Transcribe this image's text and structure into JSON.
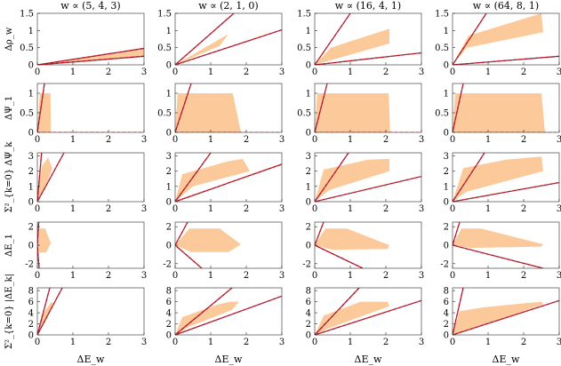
{
  "chart_data": {
    "type": "area",
    "layout": "grid",
    "rows": 5,
    "cols": 4,
    "fill_color": "#fbc99a",
    "line_color": "#9b1030",
    "dash_color": "#e0302a",
    "column_titles": [
      "w ∝ (5, 4, 3)",
      "w ∝ (2, 1, 0)",
      "w ∝ (16, 4, 1)",
      "w ∝ (64, 8, 1)"
    ],
    "row_labels": [
      "Δρ_w",
      "ΔΨ_1",
      "Σ²_{k=0} ΔΨ_k",
      "ΔE_1",
      "Σ²_{k=0} |ΔE_k|"
    ],
    "xlabel": "ΔE_w",
    "xlim": [
      0,
      3
    ],
    "xticks": [
      0,
      1,
      2,
      3
    ],
    "rows_spec": [
      {
        "ylim": [
          0,
          1.5
        ],
        "yticks": [
          "0",
          "0.5",
          "1",
          "1.5"
        ],
        "yticks_values": [
          0,
          0.5,
          1,
          1.5
        ],
        "panels": [
          {
            "region": [
              [
                0,
                0
              ],
              [
                3,
                0.48
              ],
              [
                3,
                0.25
              ]
            ],
            "lines": [
              [
                0,
                0,
                3,
                0.48
              ],
              [
                0,
                0,
                3,
                0.25
              ]
            ]
          },
          {
            "region": [
              [
                0,
                0
              ],
              [
                1.5,
                0.9
              ],
              [
                1.25,
                0.55
              ]
            ],
            "lines": [
              [
                0,
                0,
                1.65,
                1.5
              ],
              [
                0,
                0,
                3,
                1.02
              ]
            ]
          },
          {
            "region": [
              [
                0,
                0
              ],
              [
                0.45,
                0.5
              ],
              [
                2.1,
                1.05
              ],
              [
                2.1,
                0.62
              ]
            ],
            "lines": [
              [
                0,
                0,
                1.0,
                1.5
              ],
              [
                0,
                0,
                3,
                0.35
              ]
            ]
          },
          {
            "region": [
              [
                0,
                0
              ],
              [
                0.45,
                0.85
              ],
              [
                2.5,
                1.5
              ],
              [
                2.55,
                0.95
              ],
              [
                0.4,
                0.5
              ]
            ],
            "lines": [
              [
                0,
                0,
                0.95,
                1.5
              ],
              [
                0,
                0,
                3,
                0.25
              ]
            ]
          }
        ]
      },
      {
        "ylim": [
          0,
          1.25
        ],
        "yticks": [
          "0",
          "0.5",
          "1"
        ],
        "yticks_values": [
          0,
          0.5,
          1
        ],
        "panels": [
          {
            "region": [
              [
                0,
                0
              ],
              [
                0.07,
                1.0
              ],
              [
                0.37,
                1.0
              ],
              [
                0.38,
                0.0
              ]
            ],
            "lines": [
              [
                0,
                0,
                0.2,
                1.25
              ]
            ],
            "dash": [
              0,
              0,
              3,
              0
            ]
          },
          {
            "region": [
              [
                0,
                0
              ],
              [
                0.07,
                1.0
              ],
              [
                1.62,
                1.0
              ],
              [
                1.85,
                0.0
              ]
            ],
            "lines": [
              [
                0,
                0,
                0.45,
                1.25
              ]
            ],
            "dash": [
              0,
              0,
              3,
              0
            ]
          },
          {
            "region": [
              [
                0,
                0
              ],
              [
                0.07,
                1.0
              ],
              [
                2.08,
                1.0
              ],
              [
                2.12,
                0.0
              ]
            ],
            "lines": [
              [
                0,
                0,
                0.35,
                1.25
              ]
            ],
            "dash": [
              0,
              0,
              3,
              0
            ]
          },
          {
            "region": [
              [
                0,
                0
              ],
              [
                0.07,
                1.0
              ],
              [
                2.5,
                1.0
              ],
              [
                2.6,
                0.0
              ]
            ],
            "lines": [
              [
                0,
                0,
                0.3,
                1.25
              ]
            ],
            "dash": [
              0,
              0,
              3,
              0
            ]
          }
        ]
      },
      {
        "ylim": [
          0,
          3.2
        ],
        "yticks": [
          "0",
          "1",
          "2",
          "3"
        ],
        "yticks_values": [
          0,
          1,
          2,
          3
        ],
        "panels": [
          {
            "region": [
              [
                0,
                0
              ],
              [
                0.12,
                2.3
              ],
              [
                0.3,
                2.9
              ],
              [
                0.42,
                2.2
              ],
              [
                0.3,
                1.4
              ],
              [
                0.08,
                0.4
              ]
            ],
            "lines": [
              [
                0,
                0,
                0.12,
                3.2
              ],
              [
                0,
                0,
                0.75,
                3.2
              ]
            ]
          },
          {
            "region": [
              [
                0,
                0
              ],
              [
                0.2,
                1.8
              ],
              [
                1.5,
                2.65
              ],
              [
                1.9,
                2.8
              ],
              [
                2.1,
                2.0
              ],
              [
                0.5,
                1.0
              ]
            ],
            "lines": [
              [
                0,
                0,
                1.0,
                3.2
              ],
              [
                0,
                0,
                3,
                2.45
              ]
            ]
          },
          {
            "region": [
              [
                0,
                0
              ],
              [
                0.25,
                2.1
              ],
              [
                1.5,
                2.75
              ],
              [
                2.1,
                2.8
              ],
              [
                2.1,
                2.0
              ],
              [
                0.4,
                0.75
              ]
            ],
            "lines": [
              [
                0,
                0,
                0.95,
                3.2
              ],
              [
                0,
                0,
                3,
                1.65
              ]
            ]
          },
          {
            "region": [
              [
                0,
                0
              ],
              [
                0.3,
                2.2
              ],
              [
                1.5,
                2.75
              ],
              [
                2.5,
                2.95
              ],
              [
                2.55,
                2.0
              ],
              [
                0.4,
                0.65
              ]
            ],
            "lines": [
              [
                0,
                0,
                0.9,
                3.2
              ],
              [
                0,
                0,
                3,
                1.25
              ]
            ]
          }
        ]
      },
      {
        "ylim": [
          -2.5,
          2.5
        ],
        "yticks": [
          "-2",
          "0",
          "2"
        ],
        "yticks_values": [
          -2,
          0,
          2
        ],
        "panels": [
          {
            "region": [
              [
                0,
                0
              ],
              [
                0.05,
                1.8
              ],
              [
                0.22,
                1.8
              ],
              [
                0.38,
                0.2
              ],
              [
                0.25,
                -0.8
              ],
              [
                0.05,
                -0.8
              ]
            ],
            "lines": [
              [
                0,
                0,
                0.04,
                2.5
              ],
              [
                0,
                0,
                0.05,
                -2.5
              ]
            ]
          },
          {
            "region": [
              [
                0,
                0
              ],
              [
                0.4,
                1.8
              ],
              [
                1.25,
                1.8
              ],
              [
                1.85,
                0.1
              ],
              [
                1.5,
                -0.75
              ],
              [
                0.45,
                -0.75
              ]
            ],
            "lines": [
              [
                0,
                0,
                0.35,
                2.5
              ],
              [
                0,
                0,
                0.75,
                -2.5
              ]
            ]
          },
          {
            "region": [
              [
                0,
                0
              ],
              [
                0.3,
                1.8
              ],
              [
                0.9,
                1.8
              ],
              [
                2.1,
                0.0
              ],
              [
                2.05,
                -0.4
              ],
              [
                0.5,
                -0.5
              ]
            ],
            "lines": [
              [
                0,
                0,
                0.25,
                2.5
              ],
              [
                0,
                0,
                1.35,
                -2.5
              ]
            ]
          },
          {
            "region": [
              [
                0,
                0
              ],
              [
                0.25,
                1.8
              ],
              [
                0.8,
                1.8
              ],
              [
                2.55,
                0.1
              ],
              [
                2.5,
                -0.15
              ],
              [
                0.5,
                -0.3
              ]
            ],
            "lines": [
              [
                0,
                0,
                0.2,
                2.5
              ],
              [
                0,
                0,
                2.55,
                -2.5
              ]
            ]
          }
        ]
      },
      {
        "ylim": [
          0,
          8.5
        ],
        "yticks": [
          "0",
          "2",
          "4",
          "6",
          "8"
        ],
        "yticks_values": [
          0,
          2,
          4,
          6,
          8
        ],
        "panels": [
          {
            "region": [
              [
                0,
                0
              ],
              [
                0.12,
                3.5
              ],
              [
                0.4,
                6.0
              ],
              [
                0.45,
                5.2
              ],
              [
                0.08,
                1.0
              ]
            ],
            "lines": [
              [
                0,
                0,
                0.35,
                8.5
              ],
              [
                0,
                0,
                0.7,
                8.5
              ]
            ]
          },
          {
            "region": [
              [
                0,
                0
              ],
              [
                0.2,
                3.2
              ],
              [
                1.2,
                5.5
              ],
              [
                1.55,
                6.0
              ],
              [
                1.8,
                6.0
              ],
              [
                1.6,
                4.5
              ],
              [
                0.4,
                1.5
              ]
            ],
            "lines": [
              [
                0,
                0,
                1.6,
                8.5
              ],
              [
                0,
                0,
                3,
                7.0
              ]
            ]
          },
          {
            "region": [
              [
                0,
                0
              ],
              [
                0.25,
                3.5
              ],
              [
                1.3,
                6.0
              ],
              [
                2.05,
                6.0
              ],
              [
                2.1,
                5.2
              ],
              [
                0.4,
                1.2
              ]
            ],
            "lines": [
              [
                0,
                0,
                1.25,
                8.5
              ],
              [
                0,
                0,
                3,
                6.2
              ]
            ]
          },
          {
            "region": [
              [
                0,
                0
              ],
              [
                0.2,
                4.3
              ],
              [
                0.9,
                5.0
              ],
              [
                2.5,
                6.0
              ],
              [
                2.55,
                5.5
              ],
              [
                0.4,
                0.8
              ]
            ],
            "lines": [
              [
                0,
                0,
                0.3,
                8.5
              ],
              [
                0,
                0,
                3,
                6.2
              ]
            ]
          }
        ]
      }
    ]
  }
}
